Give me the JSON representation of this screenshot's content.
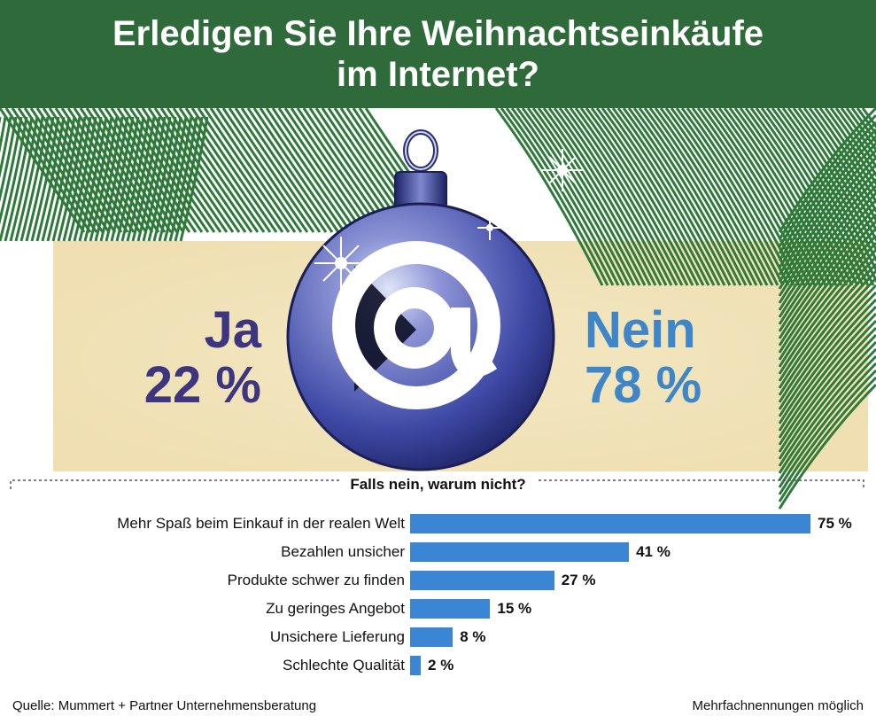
{
  "title_lines": [
    "Erledigen Sie Ihre Weihnachtseinkäufe",
    "im Internet?"
  ],
  "colors": {
    "header": "#2f6a3a",
    "ja": "#3d3580",
    "nein": "#3f86c8",
    "bar": "#3a86d4",
    "beige": "#f0e2b8"
  },
  "icons": [
    "christmas-ornament-icon",
    "at-sign-icon",
    "fir-branches-icon",
    "sparkle-icon"
  ],
  "ja": {
    "label": "Ja",
    "value": "22 %"
  },
  "nein": {
    "label": "Nein",
    "value": "78 %"
  },
  "source": "Quelle: Mummert + Partner Unternehmensberatung",
  "note": "Mehrfachnennungen möglich",
  "chart_data": [
    {
      "type": "pie",
      "title": "Erledigen Sie Ihre Weihnachtseinkäufe im Internet?",
      "categories": [
        "Ja",
        "Nein"
      ],
      "values": [
        22,
        78
      ]
    },
    {
      "type": "bar",
      "orientation": "horizontal",
      "title": "Falls nein, warum nicht?",
      "categories": [
        "Mehr Spaß beim Einkauf in der realen Welt",
        "Bezahlen unsicher",
        "Produkte schwer zu finden",
        "Zu geringes Angebot",
        "Unsichere Lieferung",
        "Schlechte Qualität"
      ],
      "values": [
        75,
        41,
        27,
        15,
        8,
        2
      ],
      "value_labels": [
        "75 %",
        "41 %",
        "27 %",
        "15 %",
        "8 %",
        "2 %"
      ],
      "xlim": [
        0,
        75
      ],
      "grid": false
    }
  ]
}
